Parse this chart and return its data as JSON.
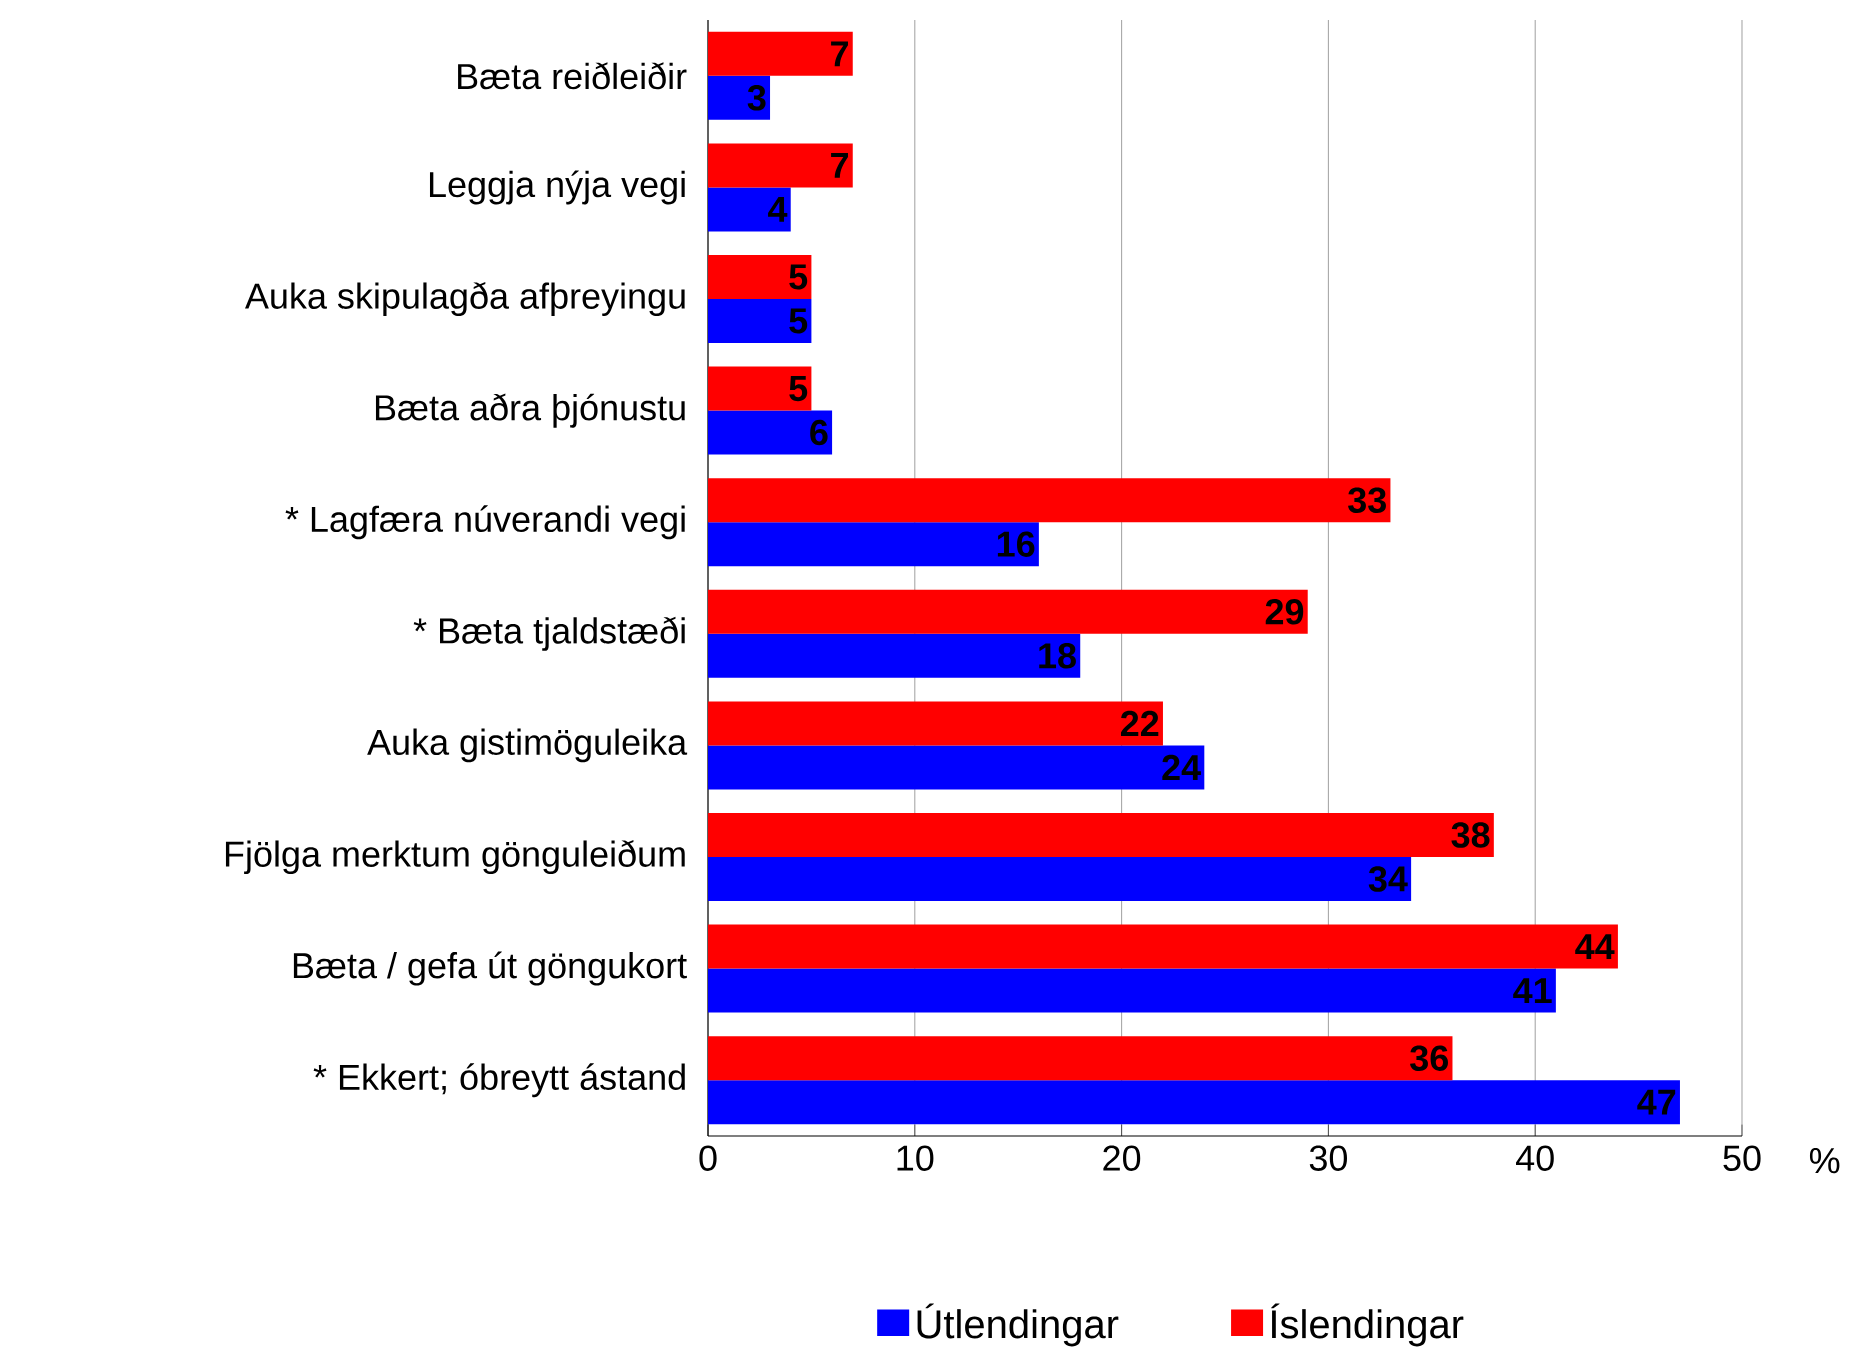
{
  "chart_data": {
    "type": "bar",
    "orientation": "horizontal",
    "xlabel": "%",
    "categories": [
      "Bæta reiðleiðir",
      "Leggja nýja vegi",
      "Auka skipulagða afþreyingu",
      "Bæta aðra þjónustu",
      "* Lagfæra núverandi vegi",
      "* Bæta tjaldstæði",
      "Auka gistimöguleika",
      "Fjölga merktum gönguleiðum",
      "Bæta / gefa út göngukort",
      "* Ekkert; óbreytt ástand"
    ],
    "series": [
      {
        "name": "Útlendingar",
        "color": "#0000ff",
        "values": [
          3,
          4,
          5,
          6,
          16,
          18,
          24,
          34,
          41,
          47
        ]
      },
      {
        "name": "Íslendingar",
        "color": "#ff0000",
        "values": [
          7,
          7,
          5,
          5,
          33,
          29,
          22,
          38,
          44,
          36
        ]
      }
    ],
    "xlim": [
      0,
      50
    ],
    "xticks": [
      0,
      10,
      20,
      30,
      40,
      50
    ],
    "grid": "x",
    "legend": "bottom",
    "data_labels": true
  }
}
